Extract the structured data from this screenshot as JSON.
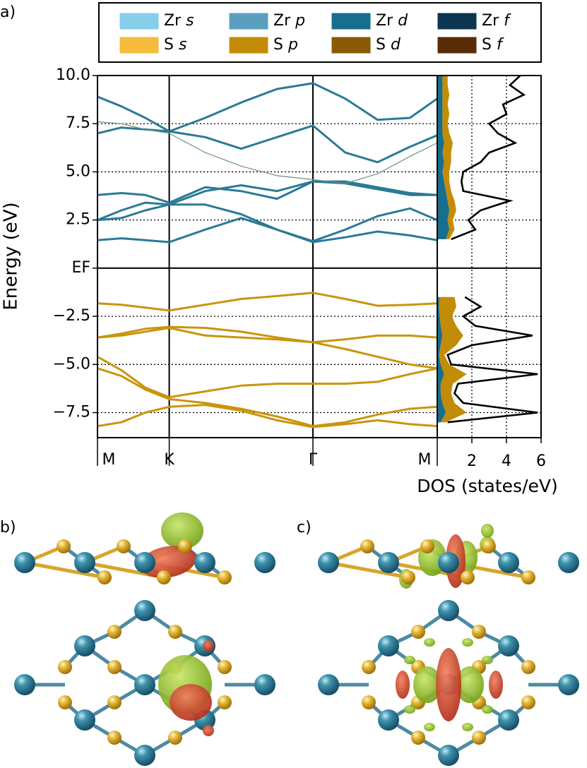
{
  "panel_labels": [
    "a)",
    "b)",
    "c)"
  ],
  "chart_data": [
    {
      "type": "line",
      "ylabel": "Energy (eV)",
      "xlim": [
        0,
        1.577
      ],
      "xticks": [
        {
          "value": 0,
          "label": "M"
        },
        {
          "value": 0.333,
          "label": "K"
        },
        {
          "value": 1,
          "label": "Γ"
        },
        {
          "value": 1.577,
          "label": "M"
        }
      ],
      "ylim": [
        -8.8,
        10
      ],
      "yticks": [
        {
          "value": 10,
          "label": "10.0"
        },
        7.5,
        {
          "value": 5,
          "label": "5.0"
        },
        2.5,
        {
          "value": 0,
          "label": "EF"
        },
        {
          "value": -2.5,
          "label": "−2.5"
        },
        {
          "value": -5,
          "label": "−5.0"
        },
        {
          "value": -7.5,
          "label": "−7.5"
        }
      ],
      "grid": true,
      "legend": [
        {
          "element": "Zr",
          "orbital": "s",
          "color": "#87ceeb"
        },
        {
          "element": "Zr",
          "orbital": "p",
          "color": "#5a9fc0"
        },
        {
          "element": "Zr",
          "orbital": "d",
          "color": "#176f8d"
        },
        {
          "element": "Zr",
          "orbital": "f",
          "color": "#0b3550"
        },
        {
          "element": "S",
          "orbital": "s",
          "color": "#f6bb3c"
        },
        {
          "element": "S",
          "orbital": "p",
          "color": "#c38c06"
        },
        {
          "element": "S",
          "orbital": "d",
          "color": "#8a5a06"
        },
        {
          "element": "S",
          "orbital": "f",
          "color": "#5a2c06"
        }
      ],
      "x": [
        0,
        0.111,
        0.222,
        0.333,
        0.5,
        0.667,
        0.833,
        1.0,
        1.15,
        1.3,
        1.45,
        1.577
      ],
      "series": [
        {
          "color": "#c9950c",
          "values": [
            -1.83,
            -1.9,
            -2.05,
            -2.2,
            -1.9,
            -1.6,
            -1.45,
            -1.28,
            -1.6,
            -1.95,
            -1.9,
            -1.83
          ]
        },
        {
          "color": "#c9950c",
          "values": [
            -3.6,
            -3.4,
            -3.15,
            -3.05,
            -3.1,
            -3.3,
            -3.6,
            -3.85,
            -3.7,
            -3.5,
            -3.5,
            -3.6
          ]
        },
        {
          "color": "#c9950c",
          "values": [
            -3.6,
            -3.5,
            -3.3,
            -3.1,
            -3.5,
            -3.6,
            -3.7,
            -3.85,
            -4.2,
            -4.6,
            -5.0,
            -5.2
          ]
        },
        {
          "color": "#c9950c",
          "values": [
            -4.6,
            -5.3,
            -6.2,
            -6.7,
            -6.4,
            -6.1,
            -6.0,
            -6.0,
            -6.0,
            -5.9,
            -5.5,
            -5.2
          ]
        },
        {
          "color": "#c9950c",
          "values": [
            -5.2,
            -5.6,
            -6.3,
            -6.8,
            -7.0,
            -7.3,
            -7.7,
            -8.2,
            -8.0,
            -7.6,
            -7.3,
            -7.2
          ]
        },
        {
          "color": "#c9950c",
          "values": [
            -8.2,
            -8.0,
            -7.5,
            -7.2,
            -7.1,
            -7.4,
            -7.9,
            -8.25,
            -8.1,
            -7.9,
            -8.1,
            -8.2
          ]
        },
        {
          "color": "#2a7a96",
          "values": [
            1.45,
            1.55,
            1.45,
            1.35,
            2.0,
            2.6,
            2.0,
            1.35,
            1.6,
            1.9,
            1.7,
            1.45
          ]
        },
        {
          "color": "#2a7a96",
          "values": [
            2.5,
            2.6,
            3.0,
            3.3,
            3.3,
            2.8,
            2.0,
            1.4,
            2.0,
            2.7,
            3.1,
            2.5
          ]
        },
        {
          "color": "#2a7a96",
          "values": [
            2.5,
            3.0,
            3.4,
            3.3,
            4.0,
            4.3,
            4.0,
            4.5,
            4.5,
            4.2,
            3.9,
            3.8
          ]
        },
        {
          "color": "#2a7a96",
          "values": [
            3.8,
            3.9,
            3.8,
            3.4,
            4.2,
            4.0,
            3.6,
            4.5,
            4.4,
            4.1,
            3.8,
            3.8
          ]
        },
        {
          "color": "#2a7a96",
          "values": [
            7.0,
            7.3,
            7.2,
            7.1,
            6.8,
            6.2,
            6.8,
            7.4,
            6.0,
            5.5,
            6.3,
            6.9
          ]
        },
        {
          "color": "#2a7a96",
          "values": [
            8.9,
            8.4,
            7.8,
            7.1,
            7.8,
            8.6,
            9.3,
            9.6,
            8.8,
            7.7,
            7.8,
            8.8
          ]
        },
        {
          "color": "#6d8f86",
          "values": [
            7.6,
            7.5,
            7.2,
            7.0,
            6.0,
            5.3,
            4.8,
            4.6,
            4.4,
            4.9,
            5.8,
            6.5
          ]
        }
      ]
    },
    {
      "type": "dos",
      "xlabel": "DOS (states/eV)",
      "xlim": [
        0,
        6
      ],
      "xticks": [
        2,
        4,
        6
      ],
      "energy": [
        -8,
        -7.5,
        -7,
        -6.5,
        -6,
        -5.5,
        -5,
        -4.5,
        -4,
        -3.5,
        -3,
        -2.5,
        -2,
        -1.5,
        -1,
        -0.5,
        0,
        0.5,
        1,
        1.5,
        2,
        2.5,
        3,
        3.5,
        4,
        4.5,
        5,
        5.5,
        6,
        6.5,
        7,
        7.5,
        8,
        8.5,
        9,
        9.5,
        10
      ],
      "series": [
        {
          "color": "#176f8d",
          "stacked": true,
          "values": [
            0.2,
            0.5,
            0.3,
            0.2,
            0.2,
            0.4,
            0.2,
            0.1,
            0.2,
            0.3,
            0.2,
            0.15,
            0.1,
            0.1,
            null,
            null,
            null,
            null,
            null,
            0.5,
            0.7,
            0.6,
            0.7,
            0.6,
            0.5,
            0.4,
            0.3,
            0.4,
            0.3,
            0.4,
            0.3,
            0.3,
            0.3,
            0.3,
            0.3,
            0.3,
            0.3
          ]
        },
        {
          "color": "#c38c06",
          "stacked": true,
          "values": [
            0.3,
            1.2,
            0.7,
            0.6,
            0.7,
            1.3,
            0.5,
            0.3,
            0.9,
            1.2,
            0.9,
            0.7,
            1.0,
            0.9,
            null,
            null,
            null,
            null,
            null,
            0.2,
            0.3,
            0.3,
            0.4,
            0.4,
            0.3,
            0.3,
            0.4,
            0.4,
            0.5,
            0.5,
            0.4,
            0.3,
            0.4,
            0.3,
            0.4,
            0.3,
            0.3
          ]
        },
        {
          "color": "#000000",
          "stacked": false,
          "values": [
            0.6,
            5.8,
            1.5,
            1.0,
            1.2,
            5.8,
            0.8,
            0.6,
            2.0,
            5.5,
            2.2,
            1.5,
            2.5,
            1.6,
            null,
            null,
            null,
            null,
            null,
            0.8,
            2.2,
            1.8,
            2.5,
            4.2,
            1.5,
            1.4,
            1.5,
            2.5,
            3.0,
            4.5,
            3.5,
            3.0,
            4.0,
            3.8,
            5.0,
            4.2,
            4.8
          ]
        }
      ]
    }
  ]
}
